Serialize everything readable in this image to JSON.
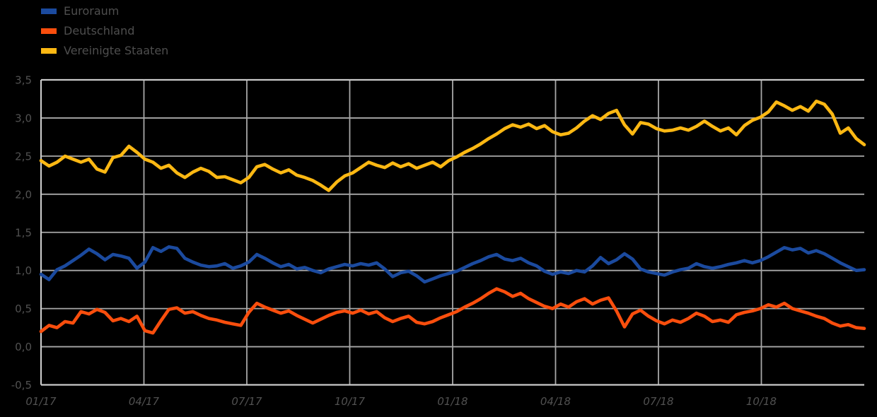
{
  "chart_data": {
    "type": "line",
    "title": "",
    "x_tick_labels": [
      "01/17",
      "04/17",
      "07/17",
      "10/17",
      "01/18",
      "04/18",
      "07/18",
      "10/18"
    ],
    "x_tick_months": [
      0,
      3,
      6,
      9,
      12,
      15,
      18,
      21
    ],
    "x_range_months": [
      0,
      24
    ],
    "y_tick_labels": [
      "3,5",
      "3,0",
      "2,5",
      "2,0",
      "1,5",
      "1,0",
      "0,5",
      "0,0",
      "-0,5"
    ],
    "y_tick_values": [
      3.5,
      3.0,
      2.5,
      2.0,
      1.5,
      1.0,
      0.5,
      0.0,
      -0.5
    ],
    "ylim": [
      -0.5,
      3.5
    ],
    "grid": true,
    "legend_position": "top-left",
    "background_color": "#000000",
    "grid_color": "#a8a8a8",
    "spine_color": "#c9c9c9",
    "series": [
      {
        "name": "Euroraum",
        "color": "#1b4a9e",
        "values": [
          0.95,
          0.88,
          1.01,
          1.06,
          1.13,
          1.2,
          1.28,
          1.22,
          1.14,
          1.21,
          1.19,
          1.16,
          1.03,
          1.11,
          1.3,
          1.25,
          1.31,
          1.29,
          1.16,
          1.11,
          1.07,
          1.05,
          1.06,
          1.09,
          1.03,
          1.06,
          1.11,
          1.21,
          1.16,
          1.1,
          1.05,
          1.08,
          1.02,
          1.04,
          1.0,
          0.97,
          1.02,
          1.05,
          1.08,
          1.06,
          1.09,
          1.07,
          1.1,
          1.02,
          0.92,
          0.97,
          0.99,
          0.93,
          0.85,
          0.89,
          0.93,
          0.96,
          0.99,
          1.04,
          1.09,
          1.13,
          1.18,
          1.21,
          1.15,
          1.13,
          1.16,
          1.1,
          1.06,
          0.99,
          0.95,
          0.98,
          0.96,
          1.0,
          0.98,
          1.06,
          1.17,
          1.09,
          1.14,
          1.22,
          1.15,
          1.02,
          0.98,
          0.96,
          0.94,
          0.98,
          1.01,
          1.03,
          1.09,
          1.05,
          1.03,
          1.05,
          1.08,
          1.1,
          1.13,
          1.1,
          1.13,
          1.18,
          1.24,
          1.3,
          1.27,
          1.29,
          1.23,
          1.26,
          1.22,
          1.16,
          1.1,
          1.05,
          1.0,
          1.01
        ]
      },
      {
        "name": "Deutschland",
        "color": "#f94e0d",
        "values": [
          0.2,
          0.28,
          0.25,
          0.33,
          0.31,
          0.46,
          0.43,
          0.49,
          0.45,
          0.34,
          0.37,
          0.33,
          0.4,
          0.21,
          0.18,
          0.34,
          0.49,
          0.51,
          0.44,
          0.46,
          0.41,
          0.37,
          0.35,
          0.32,
          0.3,
          0.28,
          0.45,
          0.57,
          0.52,
          0.48,
          0.44,
          0.47,
          0.41,
          0.36,
          0.31,
          0.36,
          0.41,
          0.45,
          0.47,
          0.44,
          0.48,
          0.43,
          0.46,
          0.38,
          0.33,
          0.37,
          0.4,
          0.32,
          0.3,
          0.33,
          0.38,
          0.42,
          0.46,
          0.52,
          0.57,
          0.63,
          0.7,
          0.76,
          0.72,
          0.66,
          0.7,
          0.63,
          0.58,
          0.53,
          0.5,
          0.56,
          0.52,
          0.59,
          0.63,
          0.56,
          0.61,
          0.64,
          0.47,
          0.26,
          0.43,
          0.48,
          0.4,
          0.34,
          0.3,
          0.35,
          0.32,
          0.37,
          0.44,
          0.4,
          0.33,
          0.35,
          0.32,
          0.42,
          0.45,
          0.47,
          0.5,
          0.55,
          0.52,
          0.57,
          0.5,
          0.47,
          0.44,
          0.4,
          0.37,
          0.31,
          0.27,
          0.29,
          0.25,
          0.24
        ]
      },
      {
        "name": "Vereinigte Staaten",
        "color": "#fcb813",
        "values": [
          2.44,
          2.37,
          2.42,
          2.5,
          2.46,
          2.42,
          2.46,
          2.33,
          2.29,
          2.48,
          2.51,
          2.63,
          2.55,
          2.46,
          2.42,
          2.34,
          2.38,
          2.28,
          2.22,
          2.29,
          2.34,
          2.3,
          2.22,
          2.23,
          2.19,
          2.15,
          2.22,
          2.36,
          2.39,
          2.33,
          2.28,
          2.32,
          2.25,
          2.22,
          2.18,
          2.12,
          2.05,
          2.16,
          2.24,
          2.28,
          2.35,
          2.42,
          2.38,
          2.35,
          2.41,
          2.36,
          2.4,
          2.34,
          2.38,
          2.42,
          2.36,
          2.44,
          2.49,
          2.55,
          2.6,
          2.66,
          2.73,
          2.79,
          2.86,
          2.91,
          2.88,
          2.92,
          2.86,
          2.9,
          2.82,
          2.78,
          2.8,
          2.87,
          2.96,
          3.03,
          2.98,
          3.06,
          3.1,
          2.91,
          2.79,
          2.94,
          2.92,
          2.86,
          2.83,
          2.84,
          2.87,
          2.84,
          2.89,
          2.96,
          2.89,
          2.83,
          2.87,
          2.78,
          2.9,
          2.97,
          3.01,
          3.08,
          3.21,
          3.16,
          3.1,
          3.15,
          3.09,
          3.22,
          3.18,
          3.05,
          2.8,
          2.87,
          2.73,
          2.65
        ]
      }
    ]
  }
}
